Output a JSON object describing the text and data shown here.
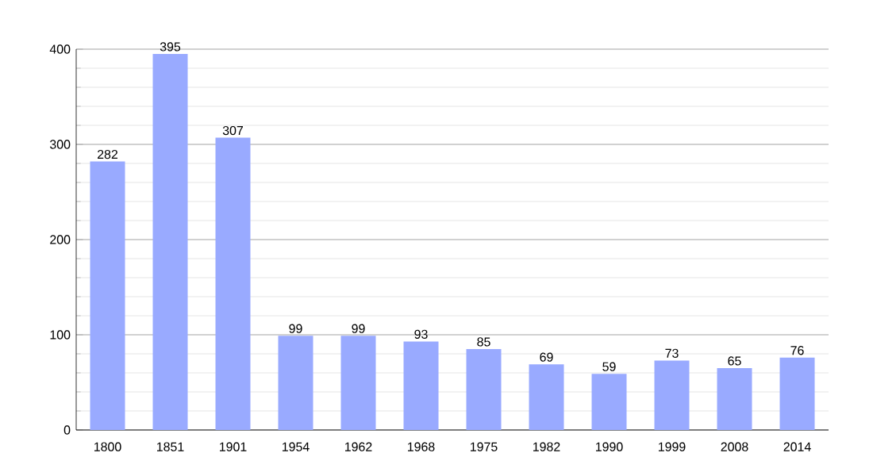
{
  "chart_data": {
    "type": "bar",
    "categories": [
      "1800",
      "1851",
      "1901",
      "1954",
      "1962",
      "1968",
      "1975",
      "1982",
      "1990",
      "1999",
      "2008",
      "2014"
    ],
    "values": [
      282,
      395,
      307,
      99,
      99,
      93,
      85,
      69,
      59,
      73,
      65,
      76
    ],
    "color": "#99aaff",
    "ylim": [
      0,
      400
    ],
    "yticks": [
      0,
      100,
      200,
      300,
      400
    ],
    "grid": true,
    "data_labels": true
  }
}
